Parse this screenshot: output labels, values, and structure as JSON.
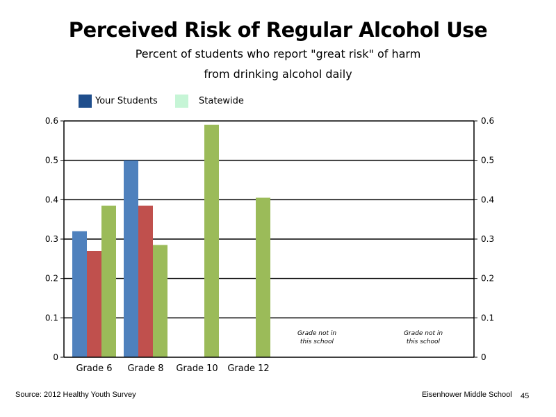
{
  "title": "Perceived Risk of Regular Alcohol Use",
  "subtitle_line1": "Percent of students who report \"great risk\" of harm",
  "subtitle_line2": "from drinking alcohol daily",
  "legend": [
    {
      "label": "Your Students",
      "color": "#1f4e8c"
    },
    {
      "label": "Statewide",
      "color": "#c6f5d6"
    }
  ],
  "footer": {
    "source": "Source: 2012 Healthy Youth Survey",
    "school": "Eisenhower Middle  School",
    "page": "45"
  },
  "chart_data": {
    "type": "bar",
    "categories": [
      "Grade 6",
      "Grade 8",
      "Grade 10",
      "Grade 12",
      "",
      ""
    ],
    "series": [
      {
        "values": [
          0.32,
          0.5,
          null,
          null,
          null,
          null
        ],
        "color": "#4f81bd"
      },
      {
        "values": [
          0.27,
          0.385,
          null,
          null,
          null,
          null
        ],
        "color": "#c0504d"
      },
      {
        "values": [
          0.385,
          0.285,
          0.59,
          0.405,
          null,
          null
        ],
        "color": "#9bbb59"
      }
    ],
    "ylim": [
      0,
      0.6
    ],
    "yticks": [
      "0",
      "0.1",
      "0.2",
      "0.3",
      "0.4",
      "0.5",
      "0.6"
    ],
    "grid": true,
    "annotations": [
      {
        "category_index": 4,
        "line1": "Grade not in",
        "line2": "this school"
      },
      {
        "category_index": 5,
        "line1": "Grade not in",
        "line2": "this school"
      }
    ]
  }
}
